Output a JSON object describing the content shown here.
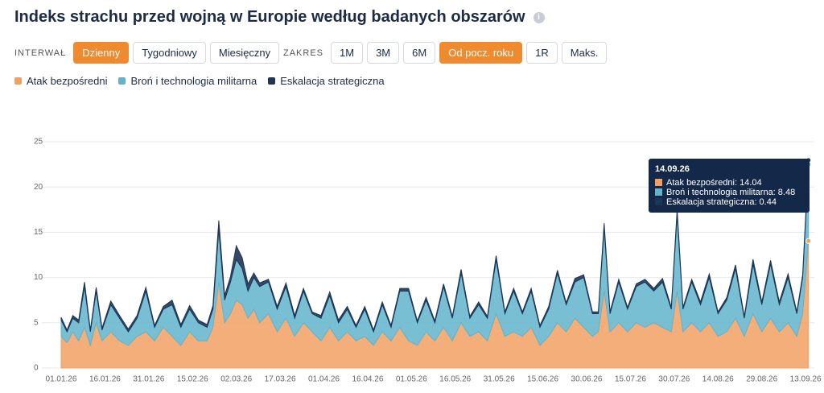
{
  "header": {
    "title": "Indeks strachu przed wojną w Europie według badanych obszarów",
    "info_icon": "i"
  },
  "controls": {
    "interval": {
      "label": "INTERWAŁ",
      "options": [
        "Dzienny",
        "Tygodniowy",
        "Miesięczny"
      ],
      "active": 0
    },
    "range": {
      "label": "ZAKRES",
      "options": [
        "1M",
        "3M",
        "6M",
        "Od pocz. roku",
        "1R",
        "Maks."
      ],
      "active": 3
    }
  },
  "chart_data": {
    "type": "stacked_area",
    "x": [
      0,
      2,
      4,
      6,
      8,
      10,
      12,
      14,
      17,
      20,
      23,
      26,
      29,
      32,
      35,
      38,
      41,
      44,
      47,
      50,
      52,
      54,
      56,
      58,
      60,
      62,
      64,
      66,
      68,
      71,
      74,
      77,
      80,
      83,
      86,
      89,
      92,
      95,
      98,
      101,
      104,
      107,
      110,
      113,
      116,
      119,
      122,
      125,
      128,
      131,
      134,
      137,
      140,
      143,
      146,
      149,
      152,
      155,
      158,
      161,
      164,
      167,
      170,
      173,
      176,
      179,
      182,
      184,
      186,
      188,
      191,
      194,
      197,
      200,
      203,
      206,
      209,
      211,
      213,
      216,
      219,
      222,
      225,
      228,
      231,
      234,
      237,
      240,
      243,
      246,
      249,
      252,
      254,
      256
    ],
    "series": [
      {
        "name": "Atak bezpośredni",
        "color": "#f2a061",
        "values": [
          3.5,
          2.8,
          4.0,
          3.0,
          4.5,
          2.5,
          5.0,
          3.0,
          4.0,
          3.0,
          2.5,
          3.5,
          4.0,
          3.0,
          4.5,
          3.5,
          2.5,
          4.0,
          3.0,
          3.0,
          4.5,
          9.5,
          5.0,
          6.0,
          7.5,
          7.0,
          5.5,
          6.5,
          5.0,
          6.0,
          4.0,
          5.5,
          3.5,
          5.0,
          4.0,
          3.0,
          4.5,
          3.0,
          4.0,
          3.0,
          3.5,
          2.5,
          4.0,
          3.0,
          4.5,
          3.0,
          2.5,
          4.0,
          3.0,
          4.5,
          3.0,
          5.0,
          3.5,
          4.0,
          3.0,
          6.0,
          3.5,
          4.0,
          3.5,
          4.5,
          2.5,
          3.5,
          5.0,
          4.0,
          5.5,
          4.5,
          3.5,
          4.0,
          8.5,
          4.0,
          5.0,
          4.0,
          5.0,
          4.5,
          5.0,
          4.5,
          4.0,
          8.5,
          4.0,
          5.0,
          4.0,
          5.0,
          3.5,
          4.0,
          5.5,
          3.5,
          6.0,
          4.0,
          5.5,
          4.0,
          5.0,
          3.5,
          6.0,
          14.04
        ]
      },
      {
        "name": "Broń i technologia militarna",
        "color": "#62b4cc",
        "values": [
          1.8,
          1.2,
          1.5,
          2.0,
          4.5,
          1.5,
          3.5,
          1.2,
          3.0,
          2.5,
          1.5,
          2.0,
          4.5,
          1.5,
          2.0,
          3.5,
          2.0,
          2.5,
          2.0,
          1.5,
          2.0,
          5.8,
          2.5,
          3.5,
          4.5,
          4.0,
          3.0,
          3.5,
          4.0,
          3.5,
          2.5,
          3.5,
          2.0,
          3.5,
          2.0,
          2.5,
          3.5,
          2.0,
          2.5,
          1.5,
          3.0,
          1.5,
          3.0,
          1.5,
          4.0,
          5.5,
          2.5,
          3.5,
          2.0,
          4.5,
          2.5,
          5.5,
          2.0,
          3.0,
          2.5,
          6.0,
          2.5,
          4.5,
          2.5,
          4.0,
          2.0,
          3.0,
          5.5,
          3.0,
          4.0,
          5.5,
          2.5,
          2.0,
          7.0,
          2.0,
          4.5,
          2.5,
          4.0,
          5.0,
          3.5,
          5.0,
          2.5,
          8.5,
          2.5,
          4.5,
          3.0,
          5.0,
          2.5,
          3.5,
          5.5,
          2.0,
          5.5,
          3.0,
          6.0,
          3.0,
          5.0,
          2.5,
          4.0,
          8.48
        ]
      },
      {
        "name": "Eskalacja strategiczna",
        "color": "#1d3557",
        "values": [
          0.3,
          0.2,
          0.3,
          0.3,
          0.5,
          0.2,
          0.4,
          0.2,
          0.4,
          0.3,
          0.3,
          0.3,
          0.4,
          0.2,
          0.3,
          0.5,
          0.3,
          0.4,
          0.3,
          0.3,
          0.4,
          1.0,
          0.5,
          0.6,
          1.5,
          1.2,
          0.8,
          0.5,
          0.4,
          0.3,
          0.3,
          0.4,
          0.3,
          0.3,
          0.2,
          0.3,
          0.4,
          0.3,
          0.3,
          0.2,
          0.3,
          0.2,
          0.3,
          0.2,
          0.3,
          0.3,
          0.2,
          0.3,
          0.2,
          0.3,
          0.2,
          0.4,
          0.2,
          0.3,
          0.2,
          0.4,
          0.2,
          0.3,
          0.2,
          0.3,
          0.2,
          0.3,
          0.3,
          0.2,
          0.4,
          0.3,
          0.2,
          0.2,
          0.5,
          0.2,
          0.3,
          0.2,
          0.3,
          0.3,
          0.3,
          0.4,
          0.2,
          0.5,
          0.2,
          0.3,
          0.3,
          0.4,
          0.2,
          0.3,
          0.4,
          0.2,
          0.5,
          0.3,
          0.4,
          0.3,
          0.4,
          0.2,
          0.3,
          0.44
        ]
      }
    ],
    "xlim": [
      0,
      258
    ],
    "xticks": [
      {
        "value": 0,
        "label": "01.01.26"
      },
      {
        "value": 15,
        "label": "16.01.26"
      },
      {
        "value": 30,
        "label": "31.01.26"
      },
      {
        "value": 45,
        "label": "15.02.26"
      },
      {
        "value": 60,
        "label": "02.03.26"
      },
      {
        "value": 75,
        "label": "17.03.26"
      },
      {
        "value": 90,
        "label": "01.04.26"
      },
      {
        "value": 105,
        "label": "16.04.26"
      },
      {
        "value": 120,
        "label": "01.05.26"
      },
      {
        "value": 135,
        "label": "16.05.26"
      },
      {
        "value": 150,
        "label": "31.05.26"
      },
      {
        "value": 165,
        "label": "15.06.26"
      },
      {
        "value": 180,
        "label": "30.06.26"
      },
      {
        "value": 195,
        "label": "15.07.26"
      },
      {
        "value": 210,
        "label": "30.07.26"
      },
      {
        "value": 225,
        "label": "14.08.26"
      },
      {
        "value": 240,
        "label": "29.08.26"
      },
      {
        "value": 255,
        "label": "13.09.26"
      }
    ],
    "ylim": [
      0,
      25
    ],
    "yticks": [
      0,
      5,
      10,
      15,
      20,
      25
    ],
    "grid": true,
    "tooltip": {
      "title": "14.09.26",
      "items": [
        "Atak bezpośredni: 14.04",
        "Broń i technologia militarna: 8.48",
        "Eskalacja strategiczna: 0.44"
      ]
    }
  }
}
